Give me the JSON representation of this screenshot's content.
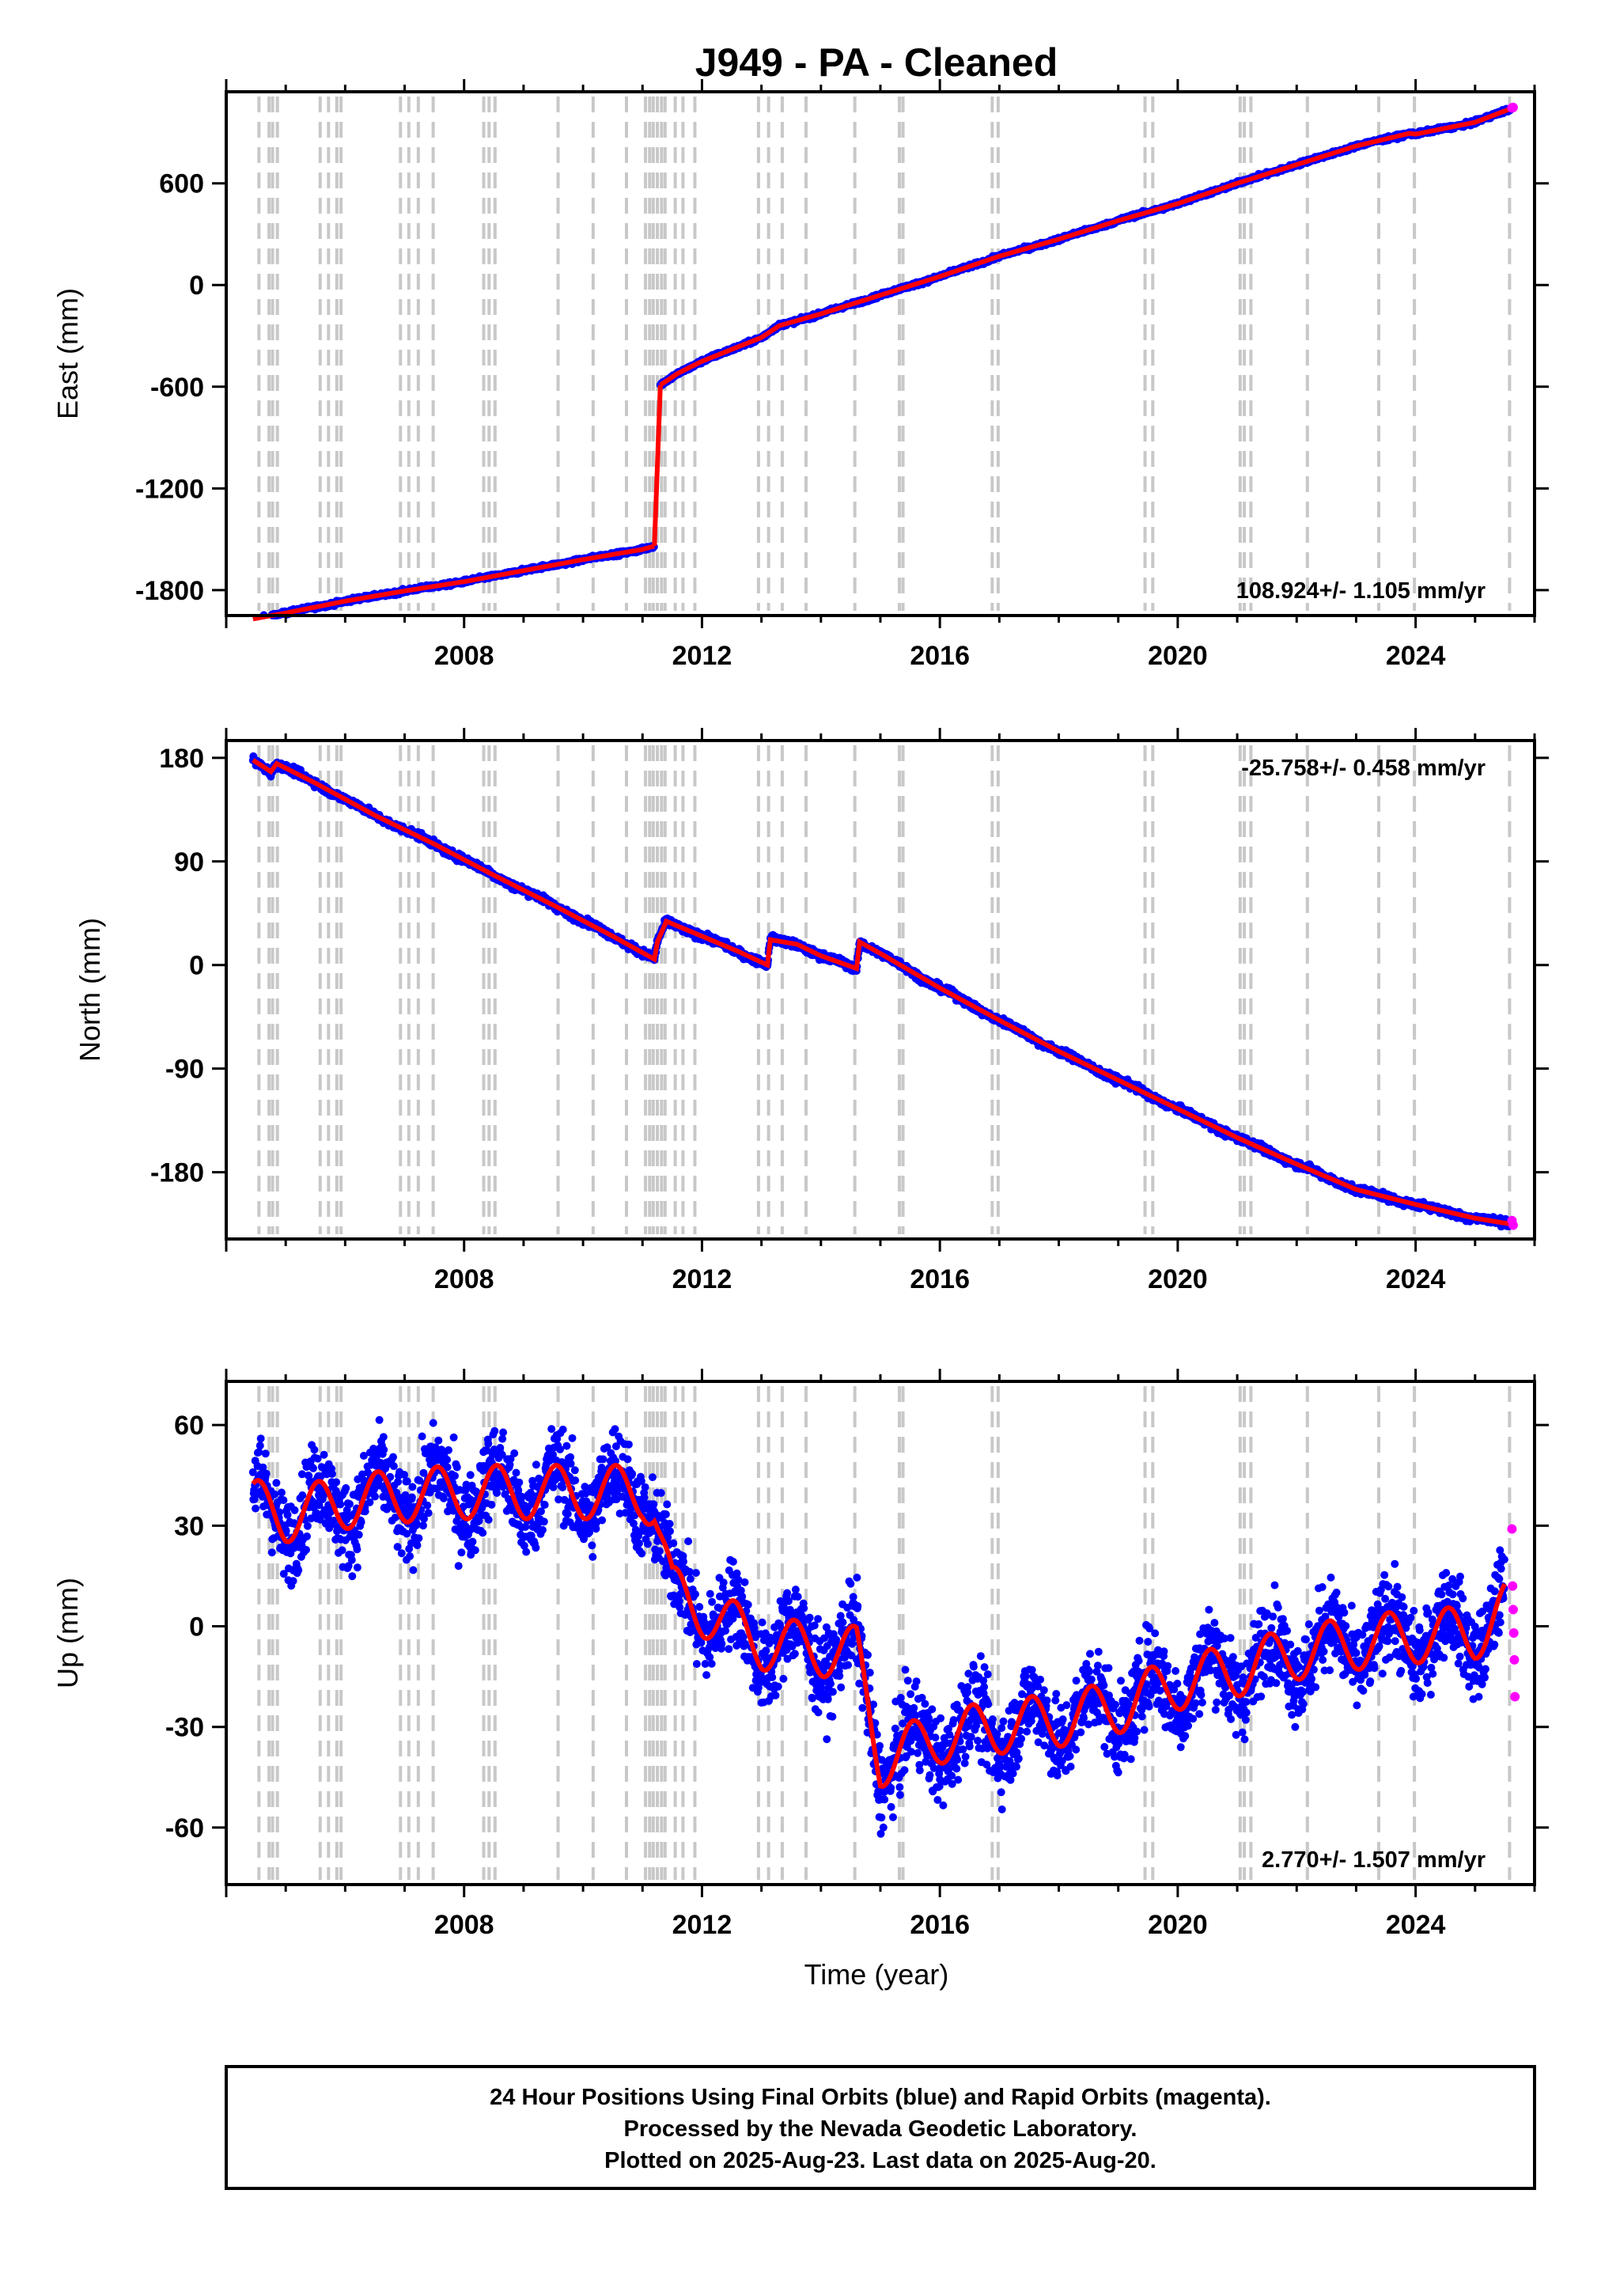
{
  "title": "J949  - PA - Cleaned",
  "x_axis_label": "Time (year)",
  "footer": {
    "line1": "24 Hour Positions Using Final Orbits (blue) and Rapid Orbits (magenta).",
    "line2": "Processed by the Nevada Geodetic Laboratory.",
    "line3": "Plotted on 2025-Aug-23. Last data on 2025-Aug-20."
  },
  "colors": {
    "final_orbits": "#0000ff",
    "rapid_orbits": "#ff00ff",
    "model_fit": "#ff0000",
    "event_lines": "#c8c8c8"
  },
  "chart_data": [
    {
      "type": "scatter",
      "component": "East",
      "ylabel": "East (mm)",
      "rate_label": "108.924+/- 1.105 mm/yr",
      "rate_position": "bottom-right",
      "xlim": [
        2004.0,
        2026.0
      ],
      "ylim": [
        -1950,
        1140
      ],
      "x_ticks": [
        2008,
        2012,
        2016,
        2020,
        2024
      ],
      "y_ticks": [
        -1800,
        -1200,
        -600,
        0,
        600
      ],
      "event_line_years": [
        2004.55,
        2004.72,
        2004.78,
        2004.86,
        2005.58,
        2005.72,
        2005.86,
        2005.93,
        2006.93,
        2007.07,
        2007.23,
        2007.48,
        2008.33,
        2008.42,
        2008.52,
        2009.58,
        2010.17,
        2010.73,
        2011.05,
        2011.12,
        2011.18,
        2011.25,
        2011.32,
        2011.38,
        2011.55,
        2011.68,
        2011.88,
        2012.95,
        2013.12,
        2013.35,
        2013.75,
        2014.57,
        2015.32,
        2015.38,
        2016.88,
        2016.98,
        2019.45,
        2019.58,
        2021.05,
        2021.12,
        2021.23,
        2022.18,
        2023.38,
        2023.98,
        2025.58
      ],
      "series": [
        {
          "name": "Final Orbits",
          "x": [
            2004.45,
            2005.0,
            2006.0,
            2007.0,
            2008.0,
            2009.0,
            2010.0,
            2011.0,
            2011.2
          ],
          "y": [
            -1970,
            -1935,
            -1865,
            -1805,
            -1750,
            -1685,
            -1620,
            -1560,
            -1540
          ]
        },
        {
          "name": "Final Orbits (post-2011)",
          "x": [
            2011.3,
            2011.6,
            2012.0,
            2012.5,
            2013.0,
            2013.3,
            2014.0,
            2015.0,
            2016.0,
            2017.0,
            2018.0,
            2019.0,
            2020.0,
            2021.0,
            2022.0,
            2023.0,
            2023.9,
            2024.0,
            2025.0,
            2025.6
          ],
          "y": [
            -590,
            -520,
            -450,
            -380,
            -310,
            -240,
            -170,
            -60,
            50,
            170,
            270,
            380,
            480,
            600,
            710,
            820,
            895,
            890,
            960,
            1040
          ]
        },
        {
          "name": "Rapid Orbits",
          "x": [
            2025.62,
            2025.64
          ],
          "y": [
            1045,
            1048
          ]
        }
      ]
    },
    {
      "type": "scatter",
      "component": "North",
      "ylabel": "North (mm)",
      "rate_label": "-25.758+/- 0.458 mm/yr",
      "rate_position": "top-right",
      "xlim": [
        2004.0,
        2026.0
      ],
      "ylim": [
        -238,
        195
      ],
      "x_ticks": [
        2008,
        2012,
        2016,
        2020,
        2024
      ],
      "y_ticks": [
        -180,
        -90,
        0,
        90,
        180
      ],
      "event_line_years": [
        2004.55,
        2004.72,
        2004.78,
        2004.86,
        2005.58,
        2005.72,
        2005.86,
        2005.93,
        2006.93,
        2007.07,
        2007.23,
        2007.48,
        2008.33,
        2008.42,
        2008.52,
        2009.58,
        2010.17,
        2010.73,
        2011.05,
        2011.12,
        2011.18,
        2011.25,
        2011.32,
        2011.38,
        2011.55,
        2011.68,
        2011.88,
        2012.95,
        2013.12,
        2013.35,
        2013.75,
        2014.57,
        2015.32,
        2015.38,
        2016.88,
        2016.98,
        2019.45,
        2019.58,
        2021.05,
        2021.12,
        2021.23,
        2022.18,
        2023.38,
        2023.98,
        2025.58
      ],
      "series": [
        {
          "name": "Final Orbits",
          "x": [
            2004.45,
            2004.75,
            2004.85,
            2005.5,
            2006.5,
            2007.5,
            2008.5,
            2009.5,
            2010.5,
            2011.2,
            2011.25,
            2011.4,
            2012.0,
            2012.6,
            2013.1,
            2013.15,
            2013.6,
            2014.0,
            2014.6,
            2014.65,
            2015.0,
            2016.0,
            2017.0,
            2018.0,
            2019.0,
            2020.0,
            2021.0,
            2022.0,
            2023.0,
            2024.0,
            2025.0,
            2025.6
          ],
          "y": [
            178,
            168,
            175,
            158,
            130,
            105,
            78,
            52,
            25,
            5,
            20,
            38,
            25,
            12,
            0,
            22,
            18,
            8,
            -3,
            20,
            10,
            -20,
            -48,
            -75,
            -100,
            -125,
            -150,
            -173,
            -195,
            -208,
            -220,
            -225
          ]
        },
        {
          "name": "Rapid Orbits",
          "x": [
            2025.62,
            2025.64
          ],
          "y": [
            -222,
            -226
          ]
        }
      ]
    },
    {
      "type": "scatter",
      "component": "Up",
      "ylabel": "Up (mm)",
      "rate_label": "2.770+/- 1.507 mm/yr",
      "rate_position": "bottom-right",
      "xlim": [
        2004.0,
        2026.0
      ],
      "ylim": [
        -77,
        73
      ],
      "x_ticks": [
        2008,
        2012,
        2016,
        2020,
        2024
      ],
      "y_ticks": [
        -60,
        -30,
        0,
        30,
        60
      ],
      "event_line_years": [
        2004.55,
        2004.72,
        2004.78,
        2004.86,
        2005.58,
        2005.72,
        2005.86,
        2005.93,
        2006.93,
        2007.07,
        2007.23,
        2007.48,
        2008.33,
        2008.42,
        2008.52,
        2009.58,
        2010.17,
        2010.73,
        2011.05,
        2011.12,
        2011.18,
        2011.25,
        2011.32,
        2011.38,
        2011.55,
        2011.68,
        2011.88,
        2012.95,
        2013.12,
        2013.35,
        2013.75,
        2014.57,
        2015.32,
        2015.38,
        2016.88,
        2016.98,
        2019.45,
        2019.58,
        2021.05,
        2021.12,
        2021.23,
        2022.18,
        2023.38,
        2023.98,
        2025.58
      ],
      "series": [
        {
          "name": "Final Orbits",
          "x": [
            2004.45,
            2005.0,
            2006.0,
            2007.0,
            2008.0,
            2009.0,
            2010.0,
            2011.0,
            2011.2,
            2011.5,
            2012.0,
            2013.0,
            2014.0,
            2014.6,
            2015.0,
            2016.0,
            2017.0,
            2018.0,
            2019.0,
            2020.0,
            2021.0,
            2022.0,
            2023.0,
            2024.0,
            2025.0,
            2025.5
          ],
          "y": [
            36,
            33,
            37,
            39,
            40,
            40,
            40,
            40,
            36,
            10,
            5,
            -5,
            -7,
            -8,
            -40,
            -33,
            -30,
            -28,
            -24,
            -17,
            -13,
            -8,
            -5,
            -3,
            -2,
            5
          ]
        },
        {
          "name": "Rapid Orbits",
          "x": [
            2025.62,
            2025.63,
            2025.64,
            2025.65,
            2025.66,
            2025.67
          ],
          "y": [
            29,
            12,
            5,
            -2,
            -10,
            -21
          ]
        }
      ]
    }
  ]
}
